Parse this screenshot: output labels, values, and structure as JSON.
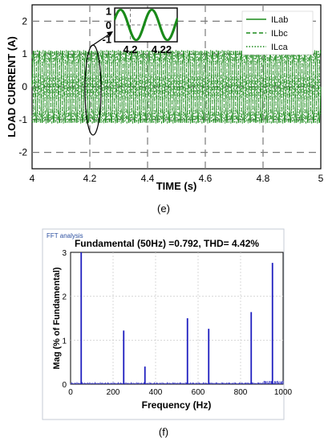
{
  "chart_data": [
    {
      "type": "line",
      "xlabel": "TIME (s)",
      "ylabel": "LOAD CURRENT (A)",
      "xlim": [
        4,
        5
      ],
      "ylim": [
        -2.5,
        2.5
      ],
      "xticks": [
        "4",
        "4.2",
        "4.4",
        "4.6",
        "4.8",
        "5"
      ],
      "yticks": [
        "2",
        "1",
        "0",
        "-1",
        "-2"
      ],
      "grid": "dashed",
      "legend_position": "top-right",
      "series": [
        {
          "name": "ILab",
          "style": "solid",
          "color": "#1a8a1a",
          "amplitude": 1.08,
          "frequency_hz": 50
        },
        {
          "name": "ILbc",
          "style": "dashed",
          "color": "#1a8a1a",
          "amplitude": 1.08,
          "frequency_hz": 50
        },
        {
          "name": "ILca",
          "style": "dotted",
          "color": "#1a8a1a",
          "amplitude": 1.08,
          "frequency_hz": 50
        }
      ],
      "inset": {
        "xticks": [
          "4.2",
          "4.22"
        ],
        "yticks": [
          "1",
          "0",
          "-1"
        ],
        "xlim": [
          4.19,
          4.23
        ],
        "ylim": [
          -1.2,
          1.2
        ]
      },
      "caption": "(e)"
    },
    {
      "type": "bar",
      "window_title": "FFT analysis",
      "title": "Fundamental (50Hz) =0.792, THD= 4.42%",
      "xlabel": "Frequency (Hz)",
      "ylabel": "Mag (% of Fundamental)",
      "xlim": [
        0,
        1000
      ],
      "ylim": [
        0,
        3
      ],
      "xticks": [
        "0",
        "200",
        "400",
        "600",
        "800",
        "1000"
      ],
      "yticks": [
        "3",
        "2",
        "1",
        "0"
      ],
      "color": "#1f1fbf",
      "x": [
        50,
        250,
        350,
        550,
        650,
        850,
        950
      ],
      "values": [
        3.05,
        1.22,
        0.4,
        1.5,
        1.26,
        1.64,
        2.76
      ],
      "caption": "(f)"
    }
  ]
}
